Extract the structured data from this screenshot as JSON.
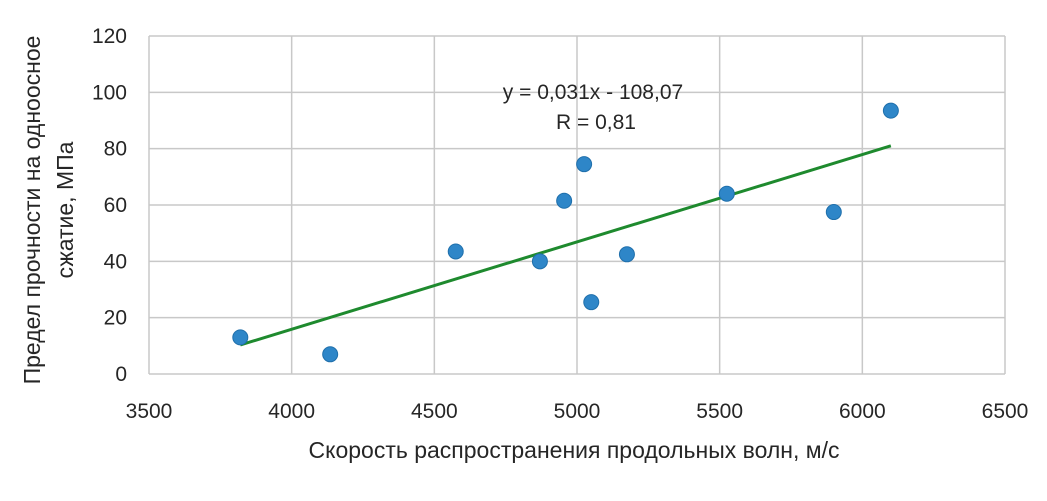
{
  "chart_data": {
    "type": "scatter",
    "xlabel": "Скорость распространения продольных волн, м/с",
    "ylabel_line1": "Предел прочности на одноосное",
    "ylabel_line2": "сжатие, МПа",
    "xlim": [
      3500,
      6500
    ],
    "ylim": [
      0,
      120
    ],
    "xticks": [
      "3500",
      "4000",
      "4500",
      "5000",
      "5500",
      "6000",
      "6500"
    ],
    "yticks": [
      "0",
      "20",
      "40",
      "60",
      "80",
      "100",
      "120"
    ],
    "xtick_values": [
      3500,
      4000,
      4500,
      5000,
      5500,
      6000,
      6500
    ],
    "ytick_values": [
      0,
      20,
      40,
      60,
      80,
      100,
      120
    ],
    "grid": true,
    "points": [
      {
        "x": 3820,
        "y": 13
      },
      {
        "x": 4135,
        "y": 7
      },
      {
        "x": 4575,
        "y": 43.5
      },
      {
        "x": 4870,
        "y": 40
      },
      {
        "x": 4955,
        "y": 61.5
      },
      {
        "x": 5025,
        "y": 74.5
      },
      {
        "x": 5050,
        "y": 25.5
      },
      {
        "x": 5175,
        "y": 42.5
      },
      {
        "x": 5525,
        "y": 64
      },
      {
        "x": 5900,
        "y": 57.5
      },
      {
        "x": 6100,
        "y": 93.5
      }
    ],
    "trendline": {
      "x_start": 3820,
      "y_start": 10.3,
      "x_end": 6100,
      "y_end": 81.0
    },
    "equation": "y = 0,031x - 108,07",
    "r_text": "R = 0,81",
    "colors": {
      "points": "#2e86c8",
      "trendline": "#1e8a2e",
      "grid": "#c8c8c8"
    }
  }
}
